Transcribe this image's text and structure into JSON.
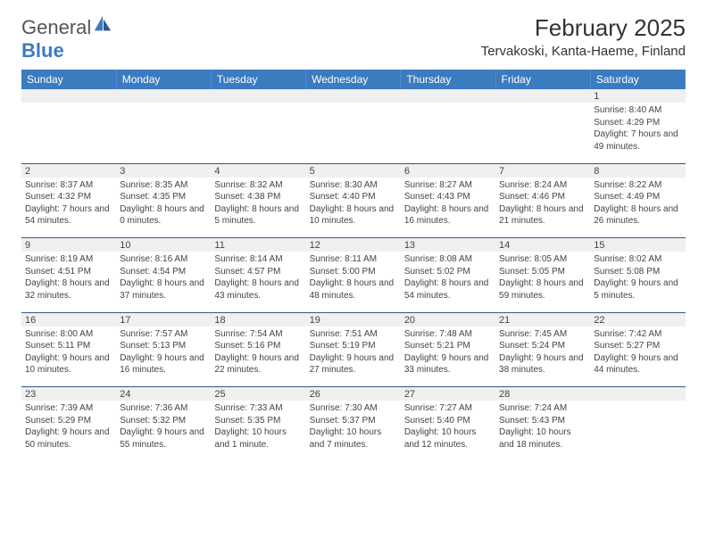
{
  "brand": {
    "name_g": "General",
    "name_b": "Blue"
  },
  "title": "February 2025",
  "location": "Tervakoski, Kanta-Haeme, Finland",
  "colors": {
    "header_bg": "#3b7bbf",
    "header_text": "#ffffff",
    "rule": "#2c5a8a",
    "strip": "#f0f0f0",
    "text": "#444444",
    "brand_gray": "#555555",
    "brand_blue": "#3b7bbf",
    "background": "#ffffff"
  },
  "day_headers": [
    "Sunday",
    "Monday",
    "Tuesday",
    "Wednesday",
    "Thursday",
    "Friday",
    "Saturday"
  ],
  "weeks": [
    [
      null,
      null,
      null,
      null,
      null,
      null,
      {
        "n": "1",
        "sr": "8:40 AM",
        "ss": "4:29 PM",
        "dl": "7 hours and 49 minutes."
      }
    ],
    [
      {
        "n": "2",
        "sr": "8:37 AM",
        "ss": "4:32 PM",
        "dl": "7 hours and 54 minutes."
      },
      {
        "n": "3",
        "sr": "8:35 AM",
        "ss": "4:35 PM",
        "dl": "8 hours and 0 minutes."
      },
      {
        "n": "4",
        "sr": "8:32 AM",
        "ss": "4:38 PM",
        "dl": "8 hours and 5 minutes."
      },
      {
        "n": "5",
        "sr": "8:30 AM",
        "ss": "4:40 PM",
        "dl": "8 hours and 10 minutes."
      },
      {
        "n": "6",
        "sr": "8:27 AM",
        "ss": "4:43 PM",
        "dl": "8 hours and 16 minutes."
      },
      {
        "n": "7",
        "sr": "8:24 AM",
        "ss": "4:46 PM",
        "dl": "8 hours and 21 minutes."
      },
      {
        "n": "8",
        "sr": "8:22 AM",
        "ss": "4:49 PM",
        "dl": "8 hours and 26 minutes."
      }
    ],
    [
      {
        "n": "9",
        "sr": "8:19 AM",
        "ss": "4:51 PM",
        "dl": "8 hours and 32 minutes."
      },
      {
        "n": "10",
        "sr": "8:16 AM",
        "ss": "4:54 PM",
        "dl": "8 hours and 37 minutes."
      },
      {
        "n": "11",
        "sr": "8:14 AM",
        "ss": "4:57 PM",
        "dl": "8 hours and 43 minutes."
      },
      {
        "n": "12",
        "sr": "8:11 AM",
        "ss": "5:00 PM",
        "dl": "8 hours and 48 minutes."
      },
      {
        "n": "13",
        "sr": "8:08 AM",
        "ss": "5:02 PM",
        "dl": "8 hours and 54 minutes."
      },
      {
        "n": "14",
        "sr": "8:05 AM",
        "ss": "5:05 PM",
        "dl": "8 hours and 59 minutes."
      },
      {
        "n": "15",
        "sr": "8:02 AM",
        "ss": "5:08 PM",
        "dl": "9 hours and 5 minutes."
      }
    ],
    [
      {
        "n": "16",
        "sr": "8:00 AM",
        "ss": "5:11 PM",
        "dl": "9 hours and 10 minutes."
      },
      {
        "n": "17",
        "sr": "7:57 AM",
        "ss": "5:13 PM",
        "dl": "9 hours and 16 minutes."
      },
      {
        "n": "18",
        "sr": "7:54 AM",
        "ss": "5:16 PM",
        "dl": "9 hours and 22 minutes."
      },
      {
        "n": "19",
        "sr": "7:51 AM",
        "ss": "5:19 PM",
        "dl": "9 hours and 27 minutes."
      },
      {
        "n": "20",
        "sr": "7:48 AM",
        "ss": "5:21 PM",
        "dl": "9 hours and 33 minutes."
      },
      {
        "n": "21",
        "sr": "7:45 AM",
        "ss": "5:24 PM",
        "dl": "9 hours and 38 minutes."
      },
      {
        "n": "22",
        "sr": "7:42 AM",
        "ss": "5:27 PM",
        "dl": "9 hours and 44 minutes."
      }
    ],
    [
      {
        "n": "23",
        "sr": "7:39 AM",
        "ss": "5:29 PM",
        "dl": "9 hours and 50 minutes."
      },
      {
        "n": "24",
        "sr": "7:36 AM",
        "ss": "5:32 PM",
        "dl": "9 hours and 55 minutes."
      },
      {
        "n": "25",
        "sr": "7:33 AM",
        "ss": "5:35 PM",
        "dl": "10 hours and 1 minute."
      },
      {
        "n": "26",
        "sr": "7:30 AM",
        "ss": "5:37 PM",
        "dl": "10 hours and 7 minutes."
      },
      {
        "n": "27",
        "sr": "7:27 AM",
        "ss": "5:40 PM",
        "dl": "10 hours and 12 minutes."
      },
      {
        "n": "28",
        "sr": "7:24 AM",
        "ss": "5:43 PM",
        "dl": "10 hours and 18 minutes."
      },
      null
    ]
  ],
  "labels": {
    "sunrise": "Sunrise: ",
    "sunset": "Sunset: ",
    "daylight": "Daylight: "
  }
}
